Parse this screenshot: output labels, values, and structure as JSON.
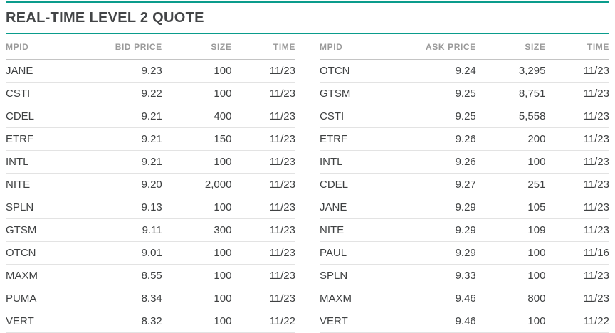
{
  "title": "REAL-TIME LEVEL 2 QUOTE",
  "colors": {
    "accent_teal": "#0a9c8c",
    "title_text": "#434547",
    "header_text": "#9a9a9a",
    "cell_text": "#3f4142",
    "header_border": "#c4c4c4",
    "row_border": "#e3e3e3"
  },
  "tables": [
    {
      "side": "bid",
      "columns": [
        "MPID",
        "BID PRICE",
        "SIZE",
        "TIME"
      ],
      "rows": [
        [
          "JANE",
          "9.23",
          "100",
          "11/23"
        ],
        [
          "CSTI",
          "9.22",
          "100",
          "11/23"
        ],
        [
          "CDEL",
          "9.21",
          "400",
          "11/23"
        ],
        [
          "ETRF",
          "9.21",
          "150",
          "11/23"
        ],
        [
          "INTL",
          "9.21",
          "100",
          "11/23"
        ],
        [
          "NITE",
          "9.20",
          "2,000",
          "11/23"
        ],
        [
          "SPLN",
          "9.13",
          "100",
          "11/23"
        ],
        [
          "GTSM",
          "9.11",
          "300",
          "11/23"
        ],
        [
          "OTCN",
          "9.01",
          "100",
          "11/23"
        ],
        [
          "MAXM",
          "8.55",
          "100",
          "11/23"
        ],
        [
          "PUMA",
          "8.34",
          "100",
          "11/23"
        ],
        [
          "VERT",
          "8.32",
          "100",
          "11/22"
        ]
      ]
    },
    {
      "side": "ask",
      "columns": [
        "MPID",
        "ASK PRICE",
        "SIZE",
        "TIME"
      ],
      "rows": [
        [
          "OTCN",
          "9.24",
          "3,295",
          "11/23"
        ],
        [
          "GTSM",
          "9.25",
          "8,751",
          "11/23"
        ],
        [
          "CSTI",
          "9.25",
          "5,558",
          "11/23"
        ],
        [
          "ETRF",
          "9.26",
          "200",
          "11/23"
        ],
        [
          "INTL",
          "9.26",
          "100",
          "11/23"
        ],
        [
          "CDEL",
          "9.27",
          "251",
          "11/23"
        ],
        [
          "JANE",
          "9.29",
          "105",
          "11/23"
        ],
        [
          "NITE",
          "9.29",
          "109",
          "11/23"
        ],
        [
          "PAUL",
          "9.29",
          "100",
          "11/16"
        ],
        [
          "SPLN",
          "9.33",
          "100",
          "11/23"
        ],
        [
          "MAXM",
          "9.46",
          "800",
          "11/23"
        ],
        [
          "VERT",
          "9.46",
          "100",
          "11/22"
        ]
      ]
    }
  ]
}
